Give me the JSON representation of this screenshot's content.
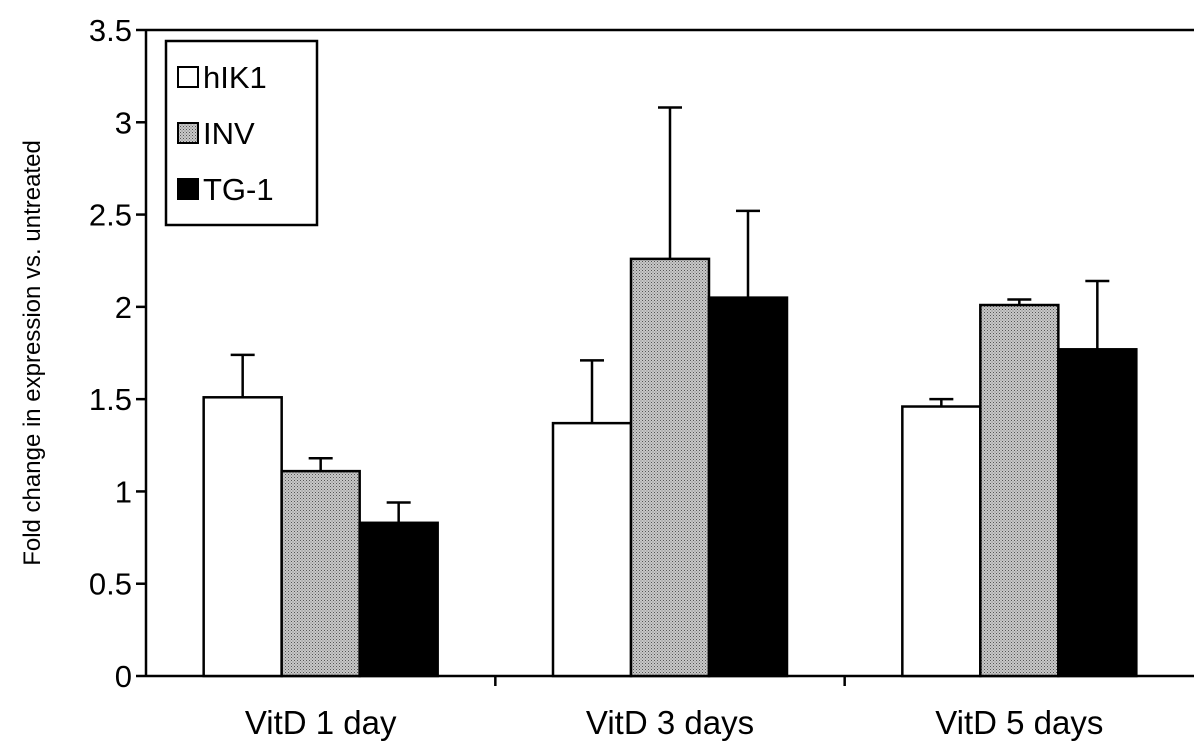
{
  "chart_data": {
    "type": "bar",
    "title": "",
    "xlabel": "",
    "ylabel": "Fold change in expression vs. untreated",
    "categories": [
      "VitD 1 day",
      "VitD 3 days",
      "VitD 5 days"
    ],
    "ylim": [
      0,
      3.5
    ],
    "yticks": [
      "0",
      "0.5",
      "1",
      "1.5",
      "2",
      "2.5",
      "3",
      "3.5"
    ],
    "grid": false,
    "legend_position": "top-left",
    "series": [
      {
        "name": "hIK1",
        "fill": "white",
        "values": [
          1.51,
          1.37,
          1.46
        ],
        "error": [
          0.23,
          0.34,
          0.04
        ]
      },
      {
        "name": "INV",
        "fill": "dotted-gray",
        "values": [
          1.11,
          2.26,
          2.01
        ],
        "error": [
          0.07,
          0.82,
          0.03
        ]
      },
      {
        "name": "TG-1",
        "fill": "black",
        "values": [
          0.83,
          2.05,
          1.77
        ],
        "error": [
          0.11,
          0.47,
          0.37
        ]
      }
    ]
  }
}
